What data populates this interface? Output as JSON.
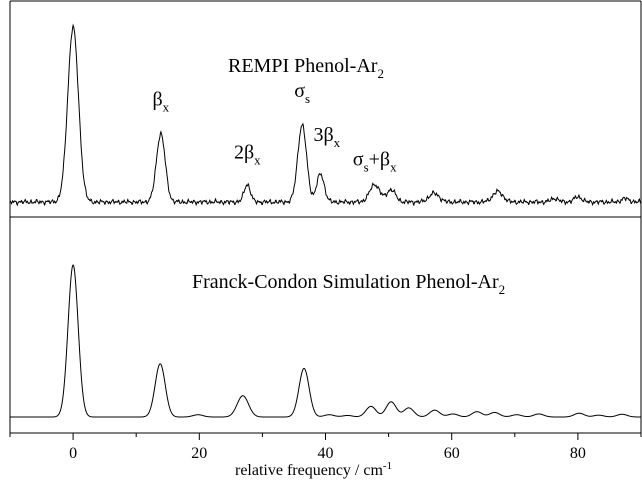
{
  "chart_data": [
    {
      "type": "line",
      "title": "REMPI Phenol-Ar",
      "title_sub": "2",
      "xlim": [
        -10,
        90
      ],
      "grid": false,
      "yaxis_ticks": false,
      "peaks": [
        {
          "x": 0,
          "y": 1.0,
          "w": 0.85
        },
        {
          "x": 13.9,
          "y": 0.39,
          "w": 0.7
        },
        {
          "x": 27.6,
          "y": 0.1,
          "w": 0.5
        },
        {
          "x": 36.3,
          "y": 0.44,
          "w": 0.7
        },
        {
          "x": 39.2,
          "y": 0.16,
          "w": 0.6
        },
        {
          "x": 47.8,
          "y": 0.1,
          "w": 0.8
        },
        {
          "x": 50.4,
          "y": 0.07,
          "w": 0.7
        },
        {
          "x": 57.2,
          "y": 0.05,
          "w": 0.8
        },
        {
          "x": 67.3,
          "y": 0.06,
          "w": 0.8
        },
        {
          "x": 76.3,
          "y": 0.02,
          "w": 0.6
        },
        {
          "x": 80.0,
          "y": 0.03,
          "w": 0.6
        },
        {
          "x": 87.5,
          "y": 0.02,
          "w": 0.6
        }
      ],
      "annotations": [
        {
          "main": "β",
          "sub": "x",
          "x": 13.9,
          "y": 0.55
        },
        {
          "pre": "2",
          "main": "β",
          "sub": "x",
          "x": 27.6,
          "y": 0.25
        },
        {
          "main": "σ",
          "sub": "s",
          "x": 36.3,
          "y": 0.6
        },
        {
          "pre": "3",
          "main": "β",
          "sub": "x",
          "x": 40.2,
          "y": 0.35
        },
        {
          "main": "σ",
          "sub": "s",
          "post": "+β",
          "post_sub": "x",
          "x": 47.8,
          "y": 0.21
        }
      ]
    },
    {
      "type": "line",
      "title": "Franck-Condon Simulation Phenol-Ar",
      "title_sub": "2",
      "xlim": [
        -10,
        90
      ],
      "xlabel": "relative frequency / cm",
      "xlabel_sup": "-1",
      "xticks": [
        0,
        20,
        40,
        60,
        80
      ],
      "xtick_labels": [
        "0",
        "20",
        "40",
        "60",
        "80"
      ],
      "grid": false,
      "peaks": [
        {
          "x": 0,
          "y": 1.0,
          "w": 0.8
        },
        {
          "x": 13.8,
          "y": 0.35,
          "w": 0.8
        },
        {
          "x": 19.8,
          "y": 0.015,
          "w": 0.8
        },
        {
          "x": 26.9,
          "y": 0.14,
          "w": 0.9
        },
        {
          "x": 36.6,
          "y": 0.32,
          "w": 0.8
        },
        {
          "x": 40.6,
          "y": 0.015,
          "w": 0.8
        },
        {
          "x": 43.5,
          "y": 0.01,
          "w": 0.8
        },
        {
          "x": 47.2,
          "y": 0.07,
          "w": 0.8
        },
        {
          "x": 50.4,
          "y": 0.1,
          "w": 0.8
        },
        {
          "x": 53.2,
          "y": 0.06,
          "w": 0.8
        },
        {
          "x": 57.3,
          "y": 0.045,
          "w": 0.8
        },
        {
          "x": 60.2,
          "y": 0.02,
          "w": 0.8
        },
        {
          "x": 64.0,
          "y": 0.035,
          "w": 0.8
        },
        {
          "x": 66.8,
          "y": 0.03,
          "w": 0.8
        },
        {
          "x": 70.3,
          "y": 0.015,
          "w": 0.8
        },
        {
          "x": 73.8,
          "y": 0.02,
          "w": 0.8
        },
        {
          "x": 80.2,
          "y": 0.025,
          "w": 0.8
        },
        {
          "x": 83.3,
          "y": 0.012,
          "w": 0.8
        },
        {
          "x": 87.0,
          "y": 0.018,
          "w": 0.8
        }
      ]
    }
  ]
}
